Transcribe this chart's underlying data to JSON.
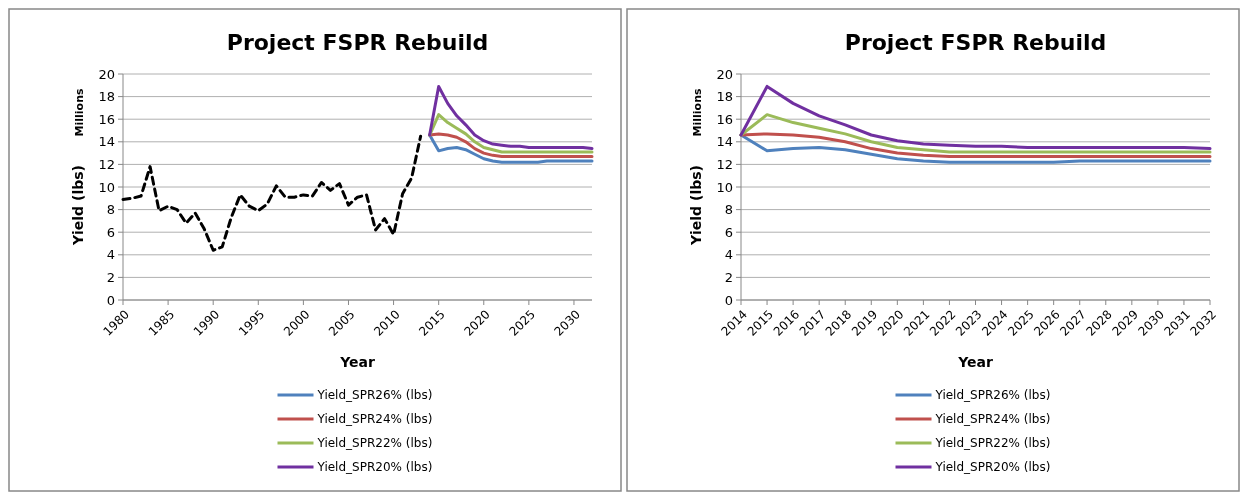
{
  "chart_data": [
    {
      "type": "line",
      "title": "Project FSPR Rebuild",
      "xlabel": "Year",
      "ylabel": "Yield (lbs)",
      "annotations": [
        "Millions"
      ],
      "xlim": [
        1980,
        2032
      ],
      "xticks": [
        1980,
        1985,
        1990,
        1995,
        2000,
        2005,
        2010,
        2015,
        2020,
        2025,
        2030
      ],
      "ylim": [
        0,
        20
      ],
      "yticks": [
        0,
        2,
        4,
        6,
        8,
        10,
        12,
        14,
        16,
        18,
        20
      ],
      "grid": "y",
      "legend": "bottom",
      "series": [
        {
          "color": "#000000",
          "line_style": "dashed",
          "x": [
            1980,
            1981,
            1982,
            1983,
            1984,
            1985,
            1986,
            1987,
            1988,
            1989,
            1990,
            1991,
            1992,
            1993,
            1994,
            1995,
            1996,
            1997,
            1998,
            1999,
            2000,
            2001,
            2002,
            2003,
            2004,
            2005,
            2006,
            2007,
            2008,
            2009,
            2010,
            2011,
            2012,
            2013
          ],
          "values": [
            8.9,
            9.0,
            9.2,
            11.8,
            7.9,
            8.3,
            8.0,
            6.8,
            7.7,
            6.3,
            4.4,
            4.7,
            7.3,
            9.3,
            8.3,
            7.9,
            8.5,
            10.1,
            9.1,
            9.1,
            9.3,
            9.2,
            10.4,
            9.7,
            10.3,
            8.4,
            9.1,
            9.3,
            6.2,
            7.2,
            5.8,
            9.4,
            10.8,
            14.5
          ]
        },
        {
          "name": "Yield_SPR26% (lbs)",
          "color": "#4f81bd",
          "x": [
            2014,
            2015,
            2016,
            2017,
            2018,
            2019,
            2020,
            2021,
            2022,
            2023,
            2024,
            2025,
            2026,
            2027,
            2028,
            2029,
            2030,
            2031,
            2032
          ],
          "values": [
            14.6,
            13.2,
            13.4,
            13.5,
            13.3,
            12.9,
            12.5,
            12.3,
            12.2,
            12.2,
            12.2,
            12.2,
            12.2,
            12.3,
            12.3,
            12.3,
            12.3,
            12.3,
            12.3
          ]
        },
        {
          "name": "Yield_SPR24% (lbs)",
          "color": "#c0504d",
          "x": [
            2014,
            2015,
            2016,
            2017,
            2018,
            2019,
            2020,
            2021,
            2022,
            2023,
            2024,
            2025,
            2026,
            2027,
            2028,
            2029,
            2030,
            2031,
            2032
          ],
          "values": [
            14.6,
            14.7,
            14.6,
            14.4,
            14.0,
            13.4,
            13.0,
            12.8,
            12.7,
            12.7,
            12.7,
            12.7,
            12.7,
            12.7,
            12.7,
            12.7,
            12.7,
            12.7,
            12.7
          ]
        },
        {
          "name": "Yield_SPR22% (lbs)",
          "color": "#9bbb59",
          "x": [
            2014,
            2015,
            2016,
            2017,
            2018,
            2019,
            2020,
            2021,
            2022,
            2023,
            2024,
            2025,
            2026,
            2027,
            2028,
            2029,
            2030,
            2031,
            2032
          ],
          "values": [
            14.6,
            16.4,
            15.7,
            15.2,
            14.7,
            14.0,
            13.5,
            13.3,
            13.1,
            13.1,
            13.1,
            13.1,
            13.1,
            13.1,
            13.1,
            13.1,
            13.1,
            13.1,
            13.1
          ]
        },
        {
          "name": "Yield_SPR20% (lbs)",
          "color": "#7030a0",
          "x": [
            2014,
            2015,
            2016,
            2017,
            2018,
            2019,
            2020,
            2021,
            2022,
            2023,
            2024,
            2025,
            2026,
            2027,
            2028,
            2029,
            2030,
            2031,
            2032
          ],
          "values": [
            14.6,
            18.9,
            17.4,
            16.3,
            15.5,
            14.6,
            14.1,
            13.8,
            13.7,
            13.6,
            13.6,
            13.5,
            13.5,
            13.5,
            13.5,
            13.5,
            13.5,
            13.5,
            13.4
          ]
        }
      ]
    },
    {
      "type": "line",
      "title": "Project FSPR Rebuild",
      "xlabel": "Year",
      "ylabel": "Yield (lbs)",
      "annotations": [
        "Millions"
      ],
      "xlim": [
        2014,
        2032
      ],
      "xticks": [
        2014,
        2015,
        2016,
        2017,
        2018,
        2019,
        2020,
        2021,
        2022,
        2023,
        2024,
        2025,
        2026,
        2027,
        2028,
        2029,
        2030,
        2031,
        2032
      ],
      "ylim": [
        0,
        20
      ],
      "yticks": [
        0,
        2,
        4,
        6,
        8,
        10,
        12,
        14,
        16,
        18,
        20
      ],
      "grid": "y",
      "legend": "bottom",
      "series": [
        {
          "name": "Yield_SPR26% (lbs)",
          "color": "#4f81bd",
          "x": [
            2014,
            2015,
            2016,
            2017,
            2018,
            2019,
            2020,
            2021,
            2022,
            2023,
            2024,
            2025,
            2026,
            2027,
            2028,
            2029,
            2030,
            2031,
            2032
          ],
          "values": [
            14.6,
            13.2,
            13.4,
            13.5,
            13.3,
            12.9,
            12.5,
            12.3,
            12.2,
            12.2,
            12.2,
            12.2,
            12.2,
            12.3,
            12.3,
            12.3,
            12.3,
            12.3,
            12.3
          ]
        },
        {
          "name": "Yield_SPR24% (lbs)",
          "color": "#c0504d",
          "x": [
            2014,
            2015,
            2016,
            2017,
            2018,
            2019,
            2020,
            2021,
            2022,
            2023,
            2024,
            2025,
            2026,
            2027,
            2028,
            2029,
            2030,
            2031,
            2032
          ],
          "values": [
            14.6,
            14.7,
            14.6,
            14.4,
            14.0,
            13.4,
            13.0,
            12.8,
            12.7,
            12.7,
            12.7,
            12.7,
            12.7,
            12.7,
            12.7,
            12.7,
            12.7,
            12.7,
            12.7
          ]
        },
        {
          "name": "Yield_SPR22% (lbs)",
          "color": "#9bbb59",
          "x": [
            2014,
            2015,
            2016,
            2017,
            2018,
            2019,
            2020,
            2021,
            2022,
            2023,
            2024,
            2025,
            2026,
            2027,
            2028,
            2029,
            2030,
            2031,
            2032
          ],
          "values": [
            14.6,
            16.4,
            15.7,
            15.2,
            14.7,
            14.0,
            13.5,
            13.3,
            13.1,
            13.1,
            13.1,
            13.1,
            13.1,
            13.1,
            13.1,
            13.1,
            13.1,
            13.1,
            13.1
          ]
        },
        {
          "name": "Yield_SPR20% (lbs)",
          "color": "#7030a0",
          "x": [
            2014,
            2015,
            2016,
            2017,
            2018,
            2019,
            2020,
            2021,
            2022,
            2023,
            2024,
            2025,
            2026,
            2027,
            2028,
            2029,
            2030,
            2031,
            2032
          ],
          "values": [
            14.6,
            18.9,
            17.4,
            16.3,
            15.5,
            14.6,
            14.1,
            13.8,
            13.7,
            13.6,
            13.6,
            13.5,
            13.5,
            13.5,
            13.5,
            13.5,
            13.5,
            13.5,
            13.4
          ]
        }
      ]
    }
  ]
}
